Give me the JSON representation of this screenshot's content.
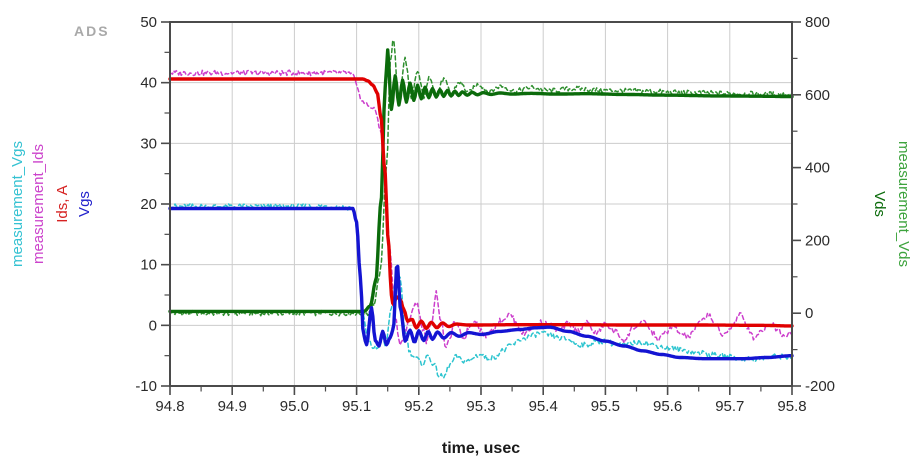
{
  "app": {
    "logo": "ADS"
  },
  "chart_data": {
    "type": "line",
    "title": "",
    "xlabel": "time, usec",
    "grid": true,
    "legend_position": "none",
    "frame_color": "#4b4b4b",
    "grid_color": "#cccccc",
    "tick_label_color": "#2b2b2b",
    "xlim": [
      94.8,
      95.8
    ],
    "x_tick_values": [
      94.8,
      94.9,
      95.0,
      95.1,
      95.2,
      95.3,
      95.4,
      95.5,
      95.6,
      95.7,
      95.8
    ],
    "x_tick_labels": [
      "94.8",
      "94.9",
      "95.0",
      "95.1",
      "95.2",
      "95.3",
      "95.4",
      "95.5",
      "95.6",
      "95.7",
      "95.8"
    ],
    "x_minor_values": [
      94.85,
      94.95,
      95.05,
      95.15,
      95.25,
      95.35,
      95.45,
      95.55,
      95.65,
      95.75
    ],
    "left_axis": {
      "lim": [
        -10,
        50
      ],
      "tick_values": [
        50,
        40,
        30,
        20,
        10,
        0,
        -10
      ],
      "tick_labels": [
        "50",
        "40",
        "30",
        "20",
        "10",
        "0",
        "-10"
      ],
      "minor_values": [
        45,
        35,
        25,
        15,
        5,
        -5
      ],
      "titles": [
        {
          "text": "measurement_Vgs",
          "color": "#35c2d2"
        },
        {
          "text": "measurement_Ids",
          "color": "#cc44cc"
        },
        {
          "text": "Ids, A",
          "color": "#d62222"
        },
        {
          "text": "Vgs",
          "color": "#2323cc"
        }
      ]
    },
    "right_axis": {
      "lim": [
        -200,
        800
      ],
      "tick_values": [
        800,
        600,
        400,
        200,
        0,
        -200
      ],
      "tick_labels": [
        "800",
        "600",
        "400",
        "200",
        "0",
        "-200"
      ],
      "minor_values": [
        700,
        500,
        300,
        100,
        -100
      ],
      "titles": [
        {
          "text": "Vds",
          "color": "#0b6b0b"
        },
        {
          "text": "measurement_Vds",
          "color": "#3da33d"
        }
      ]
    },
    "series": [
      {
        "name": "measurement_Vds",
        "axis": "right",
        "style": "dashed",
        "color": "#2f8f2f",
        "width": 1.5,
        "noise": 7,
        "points": [
          [
            94.8,
            0
          ],
          [
            95.118,
            0
          ],
          [
            95.128,
            25
          ],
          [
            95.138,
            110
          ],
          [
            95.148,
            400
          ],
          [
            95.155,
            700
          ],
          [
            95.159,
            758
          ],
          [
            95.168,
            575
          ],
          [
            95.178,
            700
          ],
          [
            95.188,
            585
          ],
          [
            95.198,
            665
          ],
          [
            95.208,
            595
          ],
          [
            95.218,
            650
          ],
          [
            95.228,
            600
          ],
          [
            95.24,
            642
          ],
          [
            95.252,
            604
          ],
          [
            95.265,
            635
          ],
          [
            95.28,
            607
          ],
          [
            95.296,
            629
          ],
          [
            95.313,
            609
          ],
          [
            95.332,
            624
          ],
          [
            95.355,
            610
          ],
          [
            95.38,
            620
          ],
          [
            95.41,
            611
          ],
          [
            95.45,
            617
          ],
          [
            95.5,
            612
          ],
          [
            95.56,
            610
          ],
          [
            95.63,
            606
          ],
          [
            95.71,
            603
          ],
          [
            95.8,
            601
          ]
        ]
      },
      {
        "name": "measurement_Vgs",
        "axis": "left",
        "style": "dashed",
        "color": "#2cc4cf",
        "width": 1.5,
        "noise": 0.45,
        "points": [
          [
            94.8,
            19.6
          ],
          [
            95.05,
            19.6
          ],
          [
            95.092,
            19.4
          ],
          [
            95.098,
            17.5
          ],
          [
            95.104,
            10
          ],
          [
            95.11,
            2
          ],
          [
            95.118,
            -2.5
          ],
          [
            95.126,
            -3.6
          ],
          [
            95.133,
            -3.8
          ],
          [
            95.14,
            -2.0
          ],
          [
            95.147,
            -3.5
          ],
          [
            95.155,
            2.5
          ],
          [
            95.163,
            7.5
          ],
          [
            95.17,
            8.0
          ],
          [
            95.178,
            -1.0
          ],
          [
            95.186,
            -4.5
          ],
          [
            95.196,
            -5.5
          ],
          [
            95.206,
            -6.3
          ],
          [
            95.215,
            -5.0
          ],
          [
            95.224,
            -6.5
          ],
          [
            95.233,
            -8.3
          ],
          [
            95.24,
            -8.6
          ],
          [
            95.25,
            -6.5
          ],
          [
            95.26,
            -5.2
          ],
          [
            95.27,
            -5.8
          ],
          [
            95.282,
            -5.9
          ],
          [
            95.292,
            -5.0
          ],
          [
            95.3,
            -4.8
          ],
          [
            95.31,
            -5.4
          ],
          [
            95.32,
            -5.3
          ],
          [
            95.335,
            -4.2
          ],
          [
            95.35,
            -3.2
          ],
          [
            95.365,
            -2.3
          ],
          [
            95.38,
            -1.8
          ],
          [
            95.395,
            -1.3
          ],
          [
            95.41,
            -1.6
          ],
          [
            95.425,
            -2.1
          ],
          [
            95.44,
            -2.3
          ],
          [
            95.455,
            -3.1
          ],
          [
            95.47,
            -3.3
          ],
          [
            95.485,
            -2.7
          ],
          [
            95.5,
            -2.6
          ],
          [
            95.515,
            -3.1
          ],
          [
            95.53,
            -3.3
          ],
          [
            95.545,
            -2.9
          ],
          [
            95.56,
            -2.7
          ],
          [
            95.58,
            -3.3
          ],
          [
            95.6,
            -3.7
          ],
          [
            95.625,
            -4.1
          ],
          [
            95.65,
            -4.5
          ],
          [
            95.675,
            -4.9
          ],
          [
            95.7,
            -5.2
          ],
          [
            95.72,
            -5.5
          ],
          [
            95.74,
            -5.6
          ],
          [
            95.76,
            -5.3
          ],
          [
            95.775,
            -5.1
          ],
          [
            95.79,
            -5.2
          ],
          [
            95.8,
            -5.1
          ]
        ]
      },
      {
        "name": "measurement_Ids",
        "axis": "left",
        "style": "dashed",
        "color": "#cc3fcc",
        "width": 1.5,
        "noise": 0.45,
        "points": [
          [
            94.8,
            41.6
          ],
          [
            95.085,
            41.6
          ],
          [
            95.094,
            41.2
          ],
          [
            95.102,
            38.8
          ],
          [
            95.11,
            36.8
          ],
          [
            95.12,
            36.2
          ],
          [
            95.13,
            35.4
          ],
          [
            95.138,
            32.5
          ],
          [
            95.146,
            24
          ],
          [
            95.154,
            12
          ],
          [
            95.162,
            1.5
          ],
          [
            95.17,
            -3.2
          ],
          [
            95.178,
            -1.5
          ],
          [
            95.186,
            1.5
          ],
          [
            95.192,
            3.2
          ],
          [
            95.198,
            3.4
          ],
          [
            95.206,
            -0.5
          ],
          [
            95.213,
            -2.7
          ],
          [
            95.221,
            1.0
          ],
          [
            95.228,
            5.4
          ],
          [
            95.236,
            0.5
          ],
          [
            95.244,
            -3.8
          ],
          [
            95.252,
            -1.5
          ],
          [
            95.258,
            0.8
          ],
          [
            95.266,
            -1.0
          ],
          [
            95.272,
            -2.2
          ],
          [
            95.282,
            -0.2
          ],
          [
            95.29,
            1.0
          ],
          [
            95.3,
            -0.8
          ],
          [
            95.308,
            -1.8
          ],
          [
            95.32,
            -0.5
          ],
          [
            95.332,
            0.8
          ],
          [
            95.347,
            1.8
          ],
          [
            95.358,
            0.2
          ],
          [
            95.368,
            -1.5
          ],
          [
            95.38,
            -0.5
          ],
          [
            95.395,
            0.5
          ],
          [
            95.41,
            0.2
          ],
          [
            95.425,
            -1.0
          ],
          [
            95.44,
            0.3
          ],
          [
            95.455,
            -0.8
          ],
          [
            95.47,
            0.4
          ],
          [
            95.485,
            -1.3
          ],
          [
            95.5,
            0.2
          ],
          [
            95.515,
            -1.0
          ],
          [
            95.531,
            -2.5
          ],
          [
            95.545,
            -0.3
          ],
          [
            95.564,
            0.5
          ],
          [
            95.575,
            -1.2
          ],
          [
            95.585,
            -2.3
          ],
          [
            95.598,
            -1.0
          ],
          [
            95.61,
            -0.3
          ],
          [
            95.622,
            -1.5
          ],
          [
            95.635,
            -1.8
          ],
          [
            95.65,
            0.3
          ],
          [
            95.666,
            1.8
          ],
          [
            95.678,
            0.0
          ],
          [
            95.687,
            -1.7
          ],
          [
            95.7,
            -0.5
          ],
          [
            95.717,
            1.8
          ],
          [
            95.728,
            -0.2
          ],
          [
            95.738,
            -2.0
          ],
          [
            95.752,
            -0.8
          ],
          [
            95.765,
            0.4
          ],
          [
            95.778,
            -0.8
          ],
          [
            95.787,
            -1.7
          ],
          [
            95.8,
            -0.9
          ]
        ]
      },
      {
        "name": "Vds",
        "axis": "right",
        "style": "solid",
        "color": "#0b6b0b",
        "width": 3.4,
        "noise": 0,
        "points": [
          [
            94.8,
            5
          ],
          [
            95.112,
            5
          ],
          [
            95.122,
            20
          ],
          [
            95.131,
            90
          ],
          [
            95.139,
            300
          ],
          [
            95.146,
            620
          ],
          [
            95.15,
            723
          ],
          [
            95.156,
            560
          ],
          [
            95.162,
            652
          ],
          [
            95.168,
            572
          ],
          [
            95.174,
            640
          ],
          [
            95.18,
            580
          ],
          [
            95.186,
            632
          ],
          [
            95.192,
            585
          ],
          [
            95.198,
            626
          ],
          [
            95.204,
            589
          ],
          [
            95.21,
            621
          ],
          [
            95.216,
            592
          ],
          [
            95.222,
            617
          ],
          [
            95.228,
            594
          ],
          [
            95.234,
            614
          ],
          [
            95.24,
            596
          ],
          [
            95.246,
            612
          ],
          [
            95.252,
            597
          ],
          [
            95.258,
            610
          ],
          [
            95.264,
            598
          ],
          [
            95.27,
            608
          ],
          [
            95.278,
            599
          ],
          [
            95.286,
            607
          ],
          [
            95.294,
            600
          ],
          [
            95.304,
            606
          ],
          [
            95.316,
            601
          ],
          [
            95.33,
            605
          ],
          [
            95.35,
            602
          ],
          [
            95.38,
            604
          ],
          [
            95.42,
            602
          ],
          [
            95.47,
            603
          ],
          [
            95.53,
            601
          ],
          [
            95.6,
            599
          ],
          [
            95.68,
            597
          ],
          [
            95.76,
            596
          ],
          [
            95.8,
            595
          ]
        ]
      },
      {
        "name": "Ids, A",
        "axis": "left",
        "style": "solid",
        "color": "#e00000",
        "width": 3.4,
        "noise": 0,
        "points": [
          [
            94.8,
            40.6
          ],
          [
            95.11,
            40.6
          ],
          [
            95.118,
            40.3
          ],
          [
            95.126,
            39.6
          ],
          [
            95.133,
            38.4
          ],
          [
            95.139,
            34.5
          ],
          [
            95.145,
            26
          ],
          [
            95.151,
            14
          ],
          [
            95.156,
            5
          ],
          [
            95.159,
            3.2
          ],
          [
            95.164,
            4.7
          ],
          [
            95.17,
            4.3
          ],
          [
            95.176,
            2.6
          ],
          [
            95.182,
            0.7
          ],
          [
            95.189,
            1.0
          ],
          [
            95.196,
            -0.4
          ],
          [
            95.204,
            0.7
          ],
          [
            95.212,
            -0.5
          ],
          [
            95.22,
            0.5
          ],
          [
            95.229,
            -0.4
          ],
          [
            95.238,
            0.4
          ],
          [
            95.248,
            -0.2
          ],
          [
            95.26,
            0.2
          ],
          [
            95.28,
            0.05
          ],
          [
            95.35,
            0.1
          ],
          [
            95.45,
            0.1
          ],
          [
            95.55,
            0.05
          ],
          [
            95.65,
            0.05
          ],
          [
            95.75,
            0.0
          ],
          [
            95.8,
            -0.1
          ]
        ]
      },
      {
        "name": "Vgs",
        "axis": "left",
        "style": "solid",
        "color": "#1414d2",
        "width": 3.4,
        "noise": 0,
        "points": [
          [
            94.8,
            19.25
          ],
          [
            95.094,
            19.25
          ],
          [
            95.1,
            17
          ],
          [
            95.106,
            8
          ],
          [
            95.111,
            -1.5
          ],
          [
            95.116,
            -3.2
          ],
          [
            95.124,
            2.9
          ],
          [
            95.13,
            -2.5
          ],
          [
            95.136,
            -3.4
          ],
          [
            95.142,
            -1.0
          ],
          [
            95.148,
            -3.2
          ],
          [
            95.154,
            -2.0
          ],
          [
            95.159,
            -0.6
          ],
          [
            95.165,
            10.3
          ],
          [
            95.171,
            2.5
          ],
          [
            95.178,
            -2.6
          ],
          [
            95.186,
            -0.8
          ],
          [
            95.193,
            -2.8
          ],
          [
            95.2,
            -0.9
          ],
          [
            95.208,
            -2.5
          ],
          [
            95.215,
            -1.0
          ],
          [
            95.222,
            -2.3
          ],
          [
            95.23,
            -1.1
          ],
          [
            95.24,
            -2.1
          ],
          [
            95.252,
            -1.2
          ],
          [
            95.265,
            -1.8
          ],
          [
            95.28,
            -1.2
          ],
          [
            95.3,
            -1.5
          ],
          [
            95.33,
            -1.0
          ],
          [
            95.36,
            -0.7
          ],
          [
            95.39,
            -0.4
          ],
          [
            95.41,
            -0.3
          ],
          [
            95.44,
            -1.0
          ],
          [
            95.47,
            -1.8
          ],
          [
            95.5,
            -2.6
          ],
          [
            95.53,
            -3.4
          ],
          [
            95.56,
            -4.2
          ],
          [
            95.59,
            -4.8
          ],
          [
            95.62,
            -5.3
          ],
          [
            95.66,
            -5.5
          ],
          [
            95.72,
            -5.5
          ],
          [
            95.76,
            -5.3
          ],
          [
            95.8,
            -5.0
          ]
        ]
      }
    ]
  }
}
